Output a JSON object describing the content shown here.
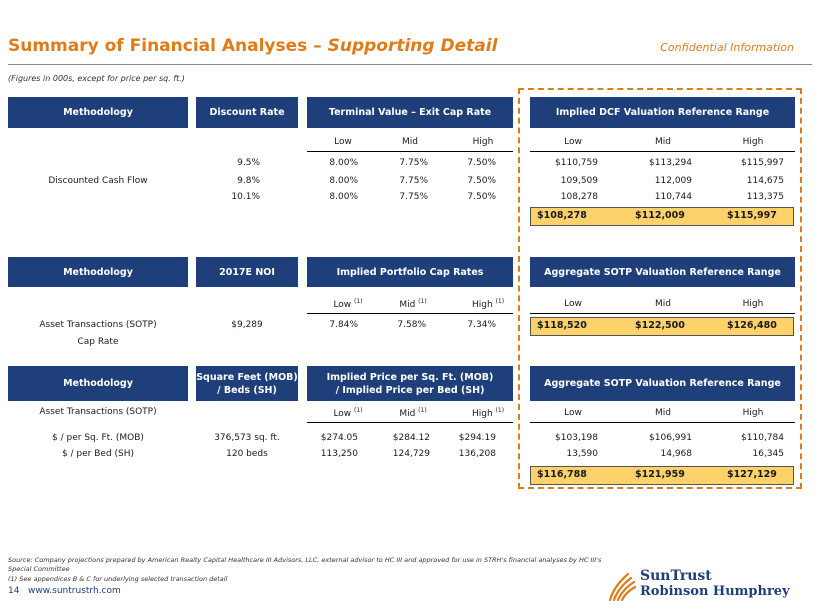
{
  "header": {
    "title_main": "Summary of Financial Analyses – ",
    "title_italic": "Supporting Detail",
    "confidential": "Confidential Information",
    "figures_note": "(Figures in 000s, except for price per sq. ft.)"
  },
  "section1": {
    "h_methodology": "Methodology",
    "h_discount": "Discount Rate",
    "h_terminal": "Terminal Value – Exit Cap Rate",
    "h_implied": "Implied DCF Valuation Reference Range",
    "low": "Low",
    "mid": "Mid",
    "high": "High",
    "row_label": "Discounted Cash Flow",
    "rows": [
      {
        "rate": "9.5%",
        "tlow": "8.00%",
        "tmid": "7.75%",
        "thigh": "7.50%",
        "vlow": "$110,759",
        "vmid": "$113,294",
        "vhigh": "$115,997"
      },
      {
        "rate": "9.8%",
        "tlow": "8.00%",
        "tmid": "7.75%",
        "thigh": "7.50%",
        "vlow": "109,509",
        "vmid": "112,009",
        "vhigh": "114,675"
      },
      {
        "rate": "10.1%",
        "tlow": "8.00%",
        "tmid": "7.75%",
        "thigh": "7.50%",
        "vlow": "108,278",
        "vmid": "110,744",
        "vhigh": "113,375"
      }
    ],
    "total": {
      "low": "$108,278",
      "mid": "$112,009",
      "high": "$115,997"
    }
  },
  "section2": {
    "h_methodology": "Methodology",
    "h_noi": "2017E NOI",
    "h_caprates": "Implied Portfolio Cap Rates",
    "h_sotp": "Aggregate SOTP Valuation Reference Range",
    "low": "Low",
    "mid": "Mid",
    "high": "High",
    "note": "(1)",
    "row_label1": "Asset Transactions (SOTP)",
    "row_label2": "Cap Rate",
    "noi": "$9,289",
    "clow": "7.84%",
    "cmid": "7.58%",
    "chigh": "7.34%",
    "total": {
      "low": "$118,520",
      "mid": "$122,500",
      "high": "$126,480"
    }
  },
  "section3": {
    "h_methodology": "Methodology",
    "h_sqft_1": "Square Feet (MOB)",
    "h_sqft_2": "/ Beds (SH)",
    "h_price_1": "Implied Price per Sq. Ft. (MOB)",
    "h_price_2": "/ Implied Price per Bed (SH)",
    "h_sotp": "Aggregate SOTP Valuation Reference Range",
    "row_header": "Asset Transactions (SOTP)",
    "low": "Low",
    "mid": "Mid",
    "high": "High",
    "note": "(1)",
    "rows": [
      {
        "label": "$ / per Sq. Ft. (MOB)",
        "qty": "376,573 sq. ft.",
        "plow": "$274.05",
        "pmid": "$284.12",
        "phigh": "$294.19",
        "vlow": "$103,198",
        "vmid": "$106,991",
        "vhigh": "$110,784"
      },
      {
        "label": "$ / per Bed (SH)",
        "qty": "120 beds",
        "plow": "113,250",
        "pmid": "124,729",
        "phigh": "136,208",
        "vlow": "13,590",
        "vmid": "14,968",
        "vhigh": "16,345"
      }
    ],
    "total": {
      "low": "$116,788",
      "mid": "$121,959",
      "high": "$127,129"
    }
  },
  "footer": {
    "source": "Source: Company projections prepared by American Realty Capital Healthcare III Advisors, LLC, external advisor to HC III and approved for use in STRH's financial analyses by HC III's Special Committee",
    "note1": "(1) See appendices B & C for underlying selected transaction detail",
    "page": "14",
    "url": "www.suntrustrh.com",
    "logo_line1": "SunTrust",
    "logo_line2": "Robinson Humphrey"
  }
}
